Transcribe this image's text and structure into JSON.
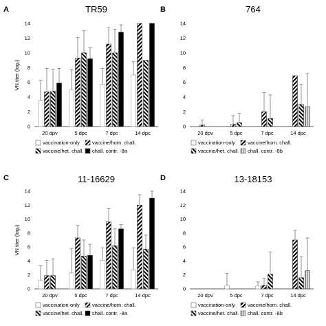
{
  "chart_data": [
    {
      "type": "bar",
      "panel": "A",
      "title": "TR59",
      "ylabel": "VN titer (log₂)",
      "ylim": [
        0,
        14
      ],
      "yticks": [
        0,
        2,
        4,
        6,
        8,
        10,
        12,
        14
      ],
      "categories": [
        "20 dpv",
        "5 dpc",
        "7 dpc",
        "14 dpc"
      ],
      "series": [
        {
          "name": "vaccination-only",
          "values": [
            3.5,
            5.0,
            5.7,
            7.0
          ],
          "errors": [
            2.8,
            2.8,
            2.2,
            1.8
          ]
        },
        {
          "name": "vaccine/hom. chall.",
          "values": [
            4.7,
            9.3,
            11.2,
            14.0
          ],
          "errors": [
            3.2,
            2.8,
            2.2,
            0
          ]
        },
        {
          "name": "vaccine/het. chall.",
          "values": [
            4.8,
            10.0,
            10.0,
            9.0
          ],
          "errors": [
            3.0,
            3.0,
            3.2,
            0
          ]
        },
        {
          "name": "chall. contr. -8a",
          "values": [
            5.9,
            9.2,
            12.8,
            14.0
          ],
          "errors": [
            2.0,
            1.5,
            1.0,
            0
          ]
        }
      ],
      "legend": [
        "vaccination-only",
        "vaccine/hom. chall.",
        "vaccine/het. chall.",
        "chall. contr. -8a"
      ]
    },
    {
      "type": "bar",
      "panel": "B",
      "title": "764",
      "ylim": [
        0,
        14
      ],
      "yticks": [
        0,
        2,
        4,
        6,
        8,
        10,
        12,
        14
      ],
      "categories": [
        "20 dpv",
        "5 dpc",
        "7 dpc",
        "14 dpc"
      ],
      "series": [
        {
          "name": "vaccination-only",
          "values": [
            0,
            0,
            0,
            0
          ],
          "errors": [
            0,
            0,
            0,
            0
          ]
        },
        {
          "name": "vaccine/hom. chall.",
          "values": [
            0.2,
            0.3,
            2.0,
            6.9
          ],
          "errors": [
            0.7,
            1.2,
            2.6,
            0
          ]
        },
        {
          "name": "vaccine/het. chall.",
          "values": [
            0,
            0.5,
            1.1,
            3.0
          ],
          "errors": [
            0,
            1.3,
            3.2,
            2.7
          ]
        },
        {
          "name": "chall. contr. -8b",
          "values": [
            0,
            0,
            0,
            2.7
          ],
          "errors": [
            0,
            0,
            0,
            4.5
          ]
        }
      ],
      "legend": [
        "vaccination-only",
        "vaccine/hom. chall.",
        "vaccine/het. chall.",
        "chall. contr. -8b"
      ]
    },
    {
      "type": "bar",
      "panel": "C",
      "title": "11-16629",
      "ylabel": "VN titer (log₂)",
      "ylim": [
        0,
        14
      ],
      "yticks": [
        0,
        2,
        4,
        6,
        8,
        10,
        12,
        14
      ],
      "categories": [
        "20 dpv",
        "5 dpc",
        "7 dpc",
        "14 dpc"
      ],
      "series": [
        {
          "name": "vaccination-only",
          "values": [
            1.2,
            2.3,
            4.1,
            2.7
          ],
          "errors": [
            2.1,
            3.5,
            1.8,
            3.2
          ]
        },
        {
          "name": "vaccine/hom. chall.",
          "values": [
            1.9,
            7.3,
            9.6,
            12.0
          ],
          "errors": [
            2.2,
            1.8,
            1.9,
            1.5
          ]
        },
        {
          "name": "vaccine/het. chall.",
          "values": [
            1.9,
            4.7,
            6.2,
            5.7
          ],
          "errors": [
            2.4,
            2.3,
            2.4,
            2.0
          ]
        },
        {
          "name": "chall. contr. -8a",
          "values": [
            0,
            4.8,
            8.6,
            13.0
          ],
          "errors": [
            0,
            1.6,
            0.6,
            1.0
          ]
        }
      ],
      "legend": [
        "vaccination-only",
        "vaccine/hom. chall.",
        "vaccine/het. chall.",
        "chall. contr. -8a"
      ]
    },
    {
      "type": "bar",
      "panel": "D",
      "title": "13-18153",
      "ylim": [
        0,
        14
      ],
      "yticks": [
        0,
        2,
        4,
        6,
        8,
        10,
        12,
        14
      ],
      "categories": [
        "20 dpv",
        "5 dpc",
        "7 dpc",
        "14 dpc"
      ],
      "series": [
        {
          "name": "vaccination-only",
          "values": [
            0,
            0.5,
            0.4,
            0
          ],
          "errors": [
            0,
            1.7,
            0.6,
            0
          ]
        },
        {
          "name": "vaccine/hom. chall.",
          "values": [
            0,
            0,
            0.5,
            7.0
          ],
          "errors": [
            0,
            0,
            1.0,
            1.4
          ]
        },
        {
          "name": "vaccine/het. chall.",
          "values": [
            0,
            0,
            2.1,
            1.6
          ],
          "errors": [
            0,
            0,
            3.2,
            3.0
          ]
        },
        {
          "name": "chall. contr. -8b",
          "values": [
            0,
            0,
            0,
            2.6
          ],
          "errors": [
            0,
            0,
            0,
            4.7
          ]
        }
      ],
      "legend": [
        "vaccination-only",
        "vaccine/hom. chall.",
        "vaccine/het. chall.",
        "chall. contr. -8b"
      ]
    }
  ]
}
